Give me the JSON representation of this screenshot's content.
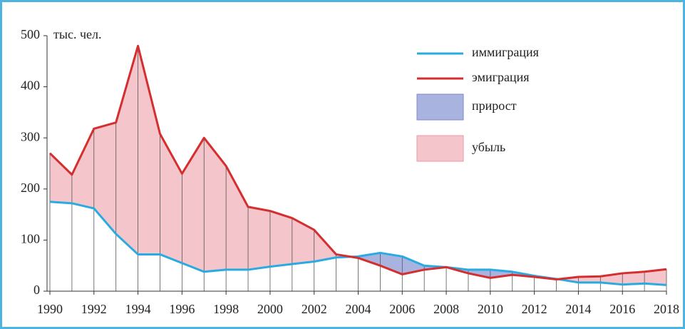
{
  "chart_data": {
    "type": "line",
    "unit_label": "тыс. чел.",
    "x": [
      1990,
      1991,
      1992,
      1993,
      1994,
      1995,
      1996,
      1997,
      1998,
      1999,
      2000,
      2001,
      2002,
      2003,
      2004,
      2005,
      2006,
      2007,
      2008,
      2009,
      2010,
      2011,
      2012,
      2013,
      2014,
      2015,
      2016,
      2017,
      2018
    ],
    "series": [
      {
        "name": "иммиграция",
        "color": "#29abe2",
        "values": [
          175,
          172,
          162,
          112,
          72,
          72,
          55,
          38,
          42,
          42,
          48,
          53,
          58,
          66,
          68,
          75,
          68,
          50,
          47,
          42,
          42,
          38,
          30,
          24,
          17,
          17,
          13,
          15,
          12
        ]
      },
      {
        "name": "эмиграция",
        "color": "#d42e2e",
        "values": [
          270,
          228,
          318,
          330,
          480,
          308,
          230,
          300,
          245,
          165,
          157,
          143,
          120,
          72,
          65,
          50,
          33,
          42,
          47,
          35,
          26,
          32,
          28,
          23,
          28,
          29,
          35,
          38,
          43
        ]
      }
    ],
    "areas": [
      {
        "name": "прирост",
        "color": "#a9b3e0"
      },
      {
        "name": "убыль",
        "color": "#f5c5cc"
      }
    ],
    "xlim": [
      1990,
      2018
    ],
    "xticks": [
      1990,
      1992,
      1994,
      1996,
      1998,
      2000,
      2002,
      2004,
      2006,
      2008,
      2010,
      2012,
      2014,
      2016,
      2018
    ],
    "ylim": [
      0,
      500
    ],
    "yticks": [
      0,
      100,
      200,
      300,
      400,
      500
    ]
  }
}
